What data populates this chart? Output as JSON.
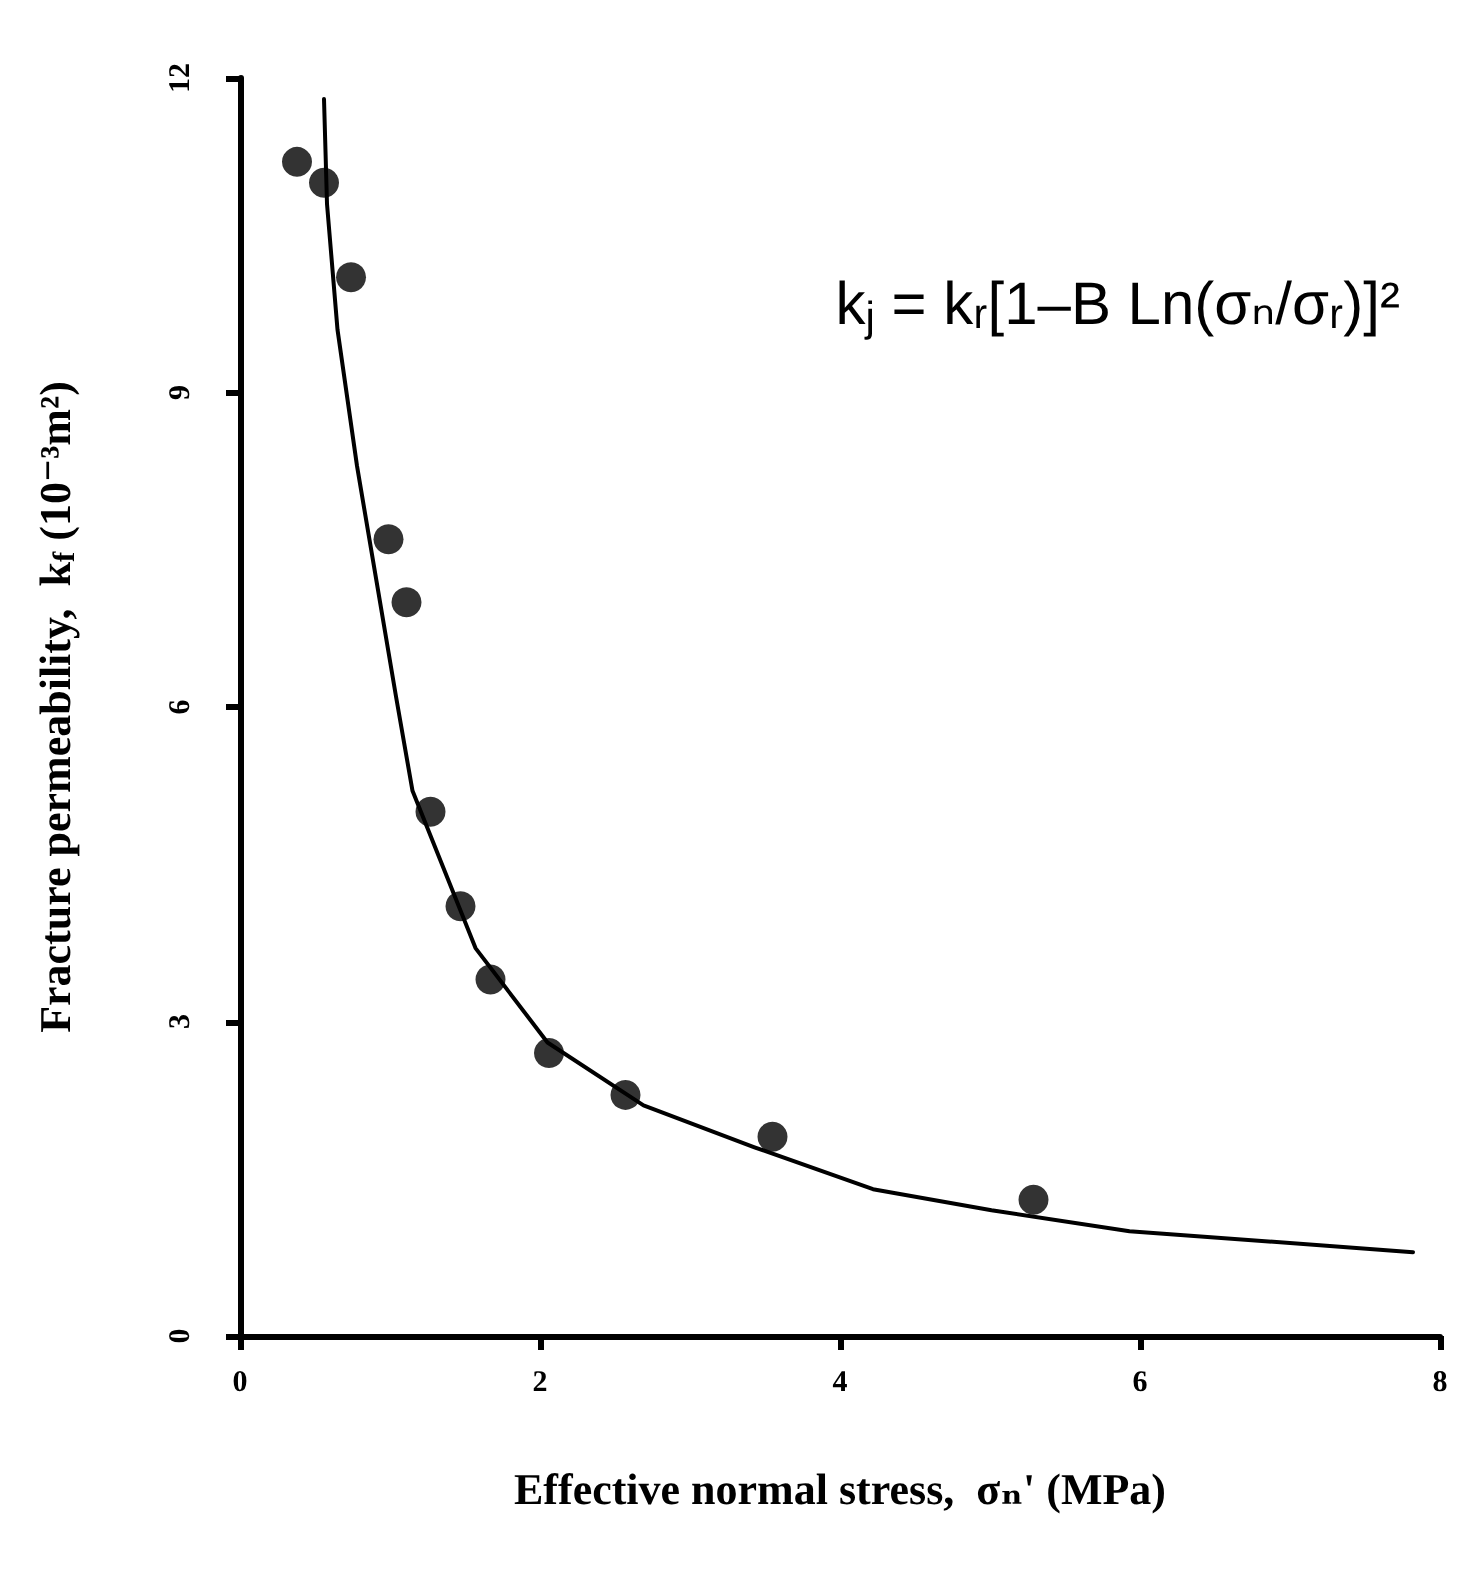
{
  "chart_data": {
    "type": "scatter",
    "xlabel": "Effective normal stress,  σₙ' (MPa)",
    "ylabel": "Fracture permeability,  k$_{f}$ (10⁻³m²)",
    "annotations": [
      "k$_{j}$ = kᵣ[1–B Ln(σₙ/σᵣ)]²"
    ],
    "xlim": [
      0,
      8
    ],
    "xticks": [
      0,
      2,
      4,
      6,
      8
    ],
    "ylim": [
      0,
      12
    ],
    "yticks": [
      0,
      3,
      6,
      9,
      12
    ],
    "grid": false,
    "marker": "circle",
    "series": [
      {
        "color": "#000000",
        "x": [
          0.38,
          0.56,
          0.74,
          0.99,
          1.11,
          1.27,
          1.47,
          1.67,
          2.06,
          2.57,
          3.55,
          5.29
        ],
        "values": [
          11.2,
          11.0,
          10.1,
          7.6,
          7.0,
          5.0,
          4.1,
          3.4,
          2.7,
          2.3,
          1.9,
          1.3
        ]
      },
      {
        "type": "line",
        "color": "#000000",
        "marker": "none",
        "line_style": "solid",
        "x": [
          0.56,
          0.58,
          0.65,
          0.78,
          0.91,
          1.04,
          1.15,
          1.57,
          2.05,
          2.69,
          3.43,
          4.22,
          5.01,
          5.93,
          7.82
        ],
        "values": [
          11.8,
          10.8,
          9.6,
          8.3,
          7.2,
          6.1,
          5.2,
          3.7,
          2.8,
          2.2,
          1.8,
          1.4,
          1.2,
          1.0,
          0.8
        ]
      }
    ]
  }
}
